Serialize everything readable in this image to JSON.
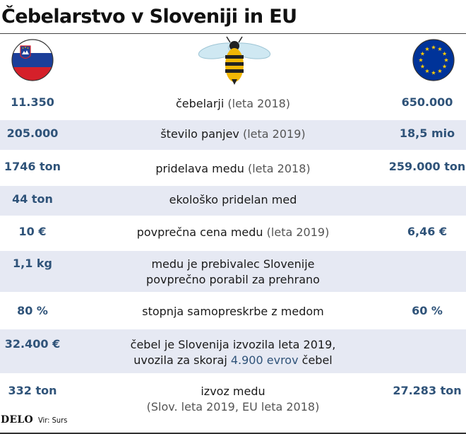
{
  "title": "Čebelarstvo v Sloveniji in EU",
  "icons": {
    "left": "slovenia-flag-icon",
    "center": "bee-icon",
    "right": "eu-flag-icon"
  },
  "colors": {
    "value_text": "#2f5379",
    "row_shade": "#e6e9f3",
    "slovenia_white": "#ffffff",
    "slovenia_blue": "#1c3f9a",
    "slovenia_red": "#d5202a",
    "eu_blue": "#003399",
    "eu_star": "#ffcc00",
    "bee_yellow": "#f2b705"
  },
  "rows": [
    {
      "si": "11.350",
      "label": "čebelarji",
      "note": "(leta 2018)",
      "eu": "650.000"
    },
    {
      "si": "205.000",
      "label": "število panjev",
      "note": "(leta 2019)",
      "eu": "18,5 mio"
    },
    {
      "si": "1746 ton",
      "label": "pridelava medu",
      "note": "(leta 2018)",
      "eu": "259.000 ton"
    },
    {
      "si": "44 ton",
      "label": "ekološko pridelan med",
      "note": "",
      "eu": ""
    },
    {
      "si": "10 €",
      "label": "povprečna cena medu",
      "note": "(leta 2019)",
      "eu": "6,46 €"
    },
    {
      "si": "1,1 kg",
      "line1": "medu je prebivalec Slovenije",
      "line2": "povprečno porabil za prehrano",
      "eu": ""
    },
    {
      "si": "80 %",
      "label": "stopnja samopreskrbe z medom",
      "note": "",
      "eu": "60 %"
    },
    {
      "si": "32.400 €",
      "line1": "čebel je Slovenija izvozila leta 2019,",
      "line2_pre": "uvozila za skoraj",
      "line2_hl": "4.900 evrov",
      "line2_post": "čebel",
      "eu": ""
    },
    {
      "si": "332 ton",
      "line1": "izvoz medu",
      "line2": "(Slov. leta 2019, EU leta 2018)",
      "eu": "27.283 ton"
    }
  ],
  "footer": {
    "brand": "DELO",
    "source": "Vir: Surs"
  }
}
